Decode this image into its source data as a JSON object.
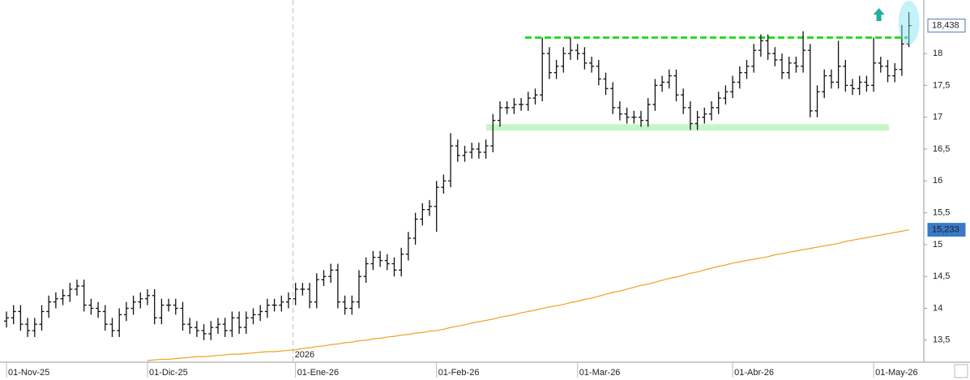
{
  "chart_data": {
    "type": "ohlc",
    "categories": [
      "01-Nov-25",
      null,
      null,
      null,
      null,
      null,
      null,
      null,
      null,
      null,
      null,
      null,
      null,
      null,
      null,
      null,
      null,
      null,
      null,
      null,
      "01-Dic-25",
      null,
      null,
      null,
      null,
      null,
      null,
      null,
      null,
      null,
      null,
      null,
      null,
      null,
      null,
      null,
      null,
      null,
      null,
      null,
      null,
      "01-Ene-26",
      null,
      null,
      null,
      null,
      null,
      null,
      null,
      null,
      null,
      null,
      null,
      null,
      null,
      null,
      null,
      null,
      null,
      null,
      null,
      "01-Feb-26",
      null,
      null,
      null,
      null,
      null,
      null,
      null,
      null,
      null,
      null,
      null,
      null,
      null,
      null,
      null,
      null,
      null,
      null,
      null,
      "01-Mar-26",
      null,
      null,
      null,
      null,
      null,
      null,
      null,
      null,
      null,
      null,
      null,
      null,
      null,
      null,
      null,
      null,
      null,
      null,
      null,
      null,
      null,
      "01-Abr-26",
      null,
      null,
      null,
      null,
      null,
      null,
      null,
      null,
      null,
      null,
      null,
      null,
      null,
      null,
      null,
      null,
      null,
      null,
      null,
      "01-May-26",
      null,
      null,
      null,
      null,
      null
    ],
    "open": [
      13.8,
      13.85,
      13.95,
      13.75,
      13.65,
      13.75,
      13.95,
      14.1,
      14.15,
      14.2,
      14.3,
      14.35,
      14.05,
      14.0,
      13.95,
      13.75,
      13.65,
      13.9,
      14.0,
      14.1,
      14.15,
      14.2,
      13.85,
      14.05,
      14.05,
      14.0,
      13.75,
      13.7,
      13.65,
      13.6,
      13.7,
      13.75,
      13.65,
      13.85,
      13.7,
      13.85,
      13.9,
      13.95,
      14.05,
      14.05,
      14.1,
      14.15,
      14.3,
      14.3,
      14.1,
      14.45,
      14.5,
      14.6,
      14.1,
      14.0,
      14.1,
      14.5,
      14.7,
      14.8,
      14.75,
      14.7,
      14.6,
      14.85,
      15.1,
      15.4,
      15.55,
      15.6,
      15.9,
      16.0,
      16.55,
      16.4,
      16.45,
      16.5,
      16.45,
      16.55,
      16.95,
      17.15,
      17.15,
      17.2,
      17.2,
      17.3,
      17.35,
      18.0,
      17.7,
      17.8,
      18.0,
      18.05,
      18.0,
      17.85,
      17.8,
      17.6,
      17.45,
      17.15,
      17.05,
      17.0,
      17.0,
      16.95,
      17.2,
      17.5,
      17.55,
      17.65,
      17.35,
      17.15,
      16.9,
      17.0,
      17.05,
      17.15,
      17.3,
      17.4,
      17.55,
      17.7,
      17.8,
      18.05,
      18.2,
      18.0,
      17.9,
      17.7,
      17.85,
      17.8,
      18.05,
      17.1,
      17.4,
      17.65,
      17.55,
      17.8,
      17.5,
      17.45,
      17.55,
      17.5,
      17.85,
      17.8,
      17.65,
      17.75,
      18.15
    ],
    "high": [
      13.95,
      14.05,
      14.05,
      13.85,
      13.85,
      14.05,
      14.2,
      14.25,
      14.3,
      14.4,
      14.45,
      14.45,
      14.15,
      14.1,
      14.05,
      13.85,
      14.0,
      14.1,
      14.2,
      14.25,
      14.3,
      14.3,
      14.15,
      14.15,
      14.15,
      14.1,
      13.85,
      13.8,
      13.75,
      13.8,
      13.85,
      13.85,
      13.95,
      13.95,
      13.95,
      14.0,
      14.05,
      14.15,
      14.15,
      14.2,
      14.25,
      14.4,
      14.4,
      14.4,
      14.55,
      14.6,
      14.7,
      14.7,
      14.2,
      14.2,
      14.6,
      14.8,
      14.9,
      14.9,
      14.85,
      14.8,
      14.95,
      15.2,
      15.5,
      15.65,
      15.7,
      16.0,
      16.1,
      16.75,
      16.65,
      16.55,
      16.6,
      16.6,
      16.65,
      17.05,
      17.25,
      17.25,
      17.3,
      17.3,
      17.4,
      17.45,
      18.25,
      18.1,
      17.9,
      18.1,
      18.25,
      18.15,
      18.1,
      17.95,
      17.9,
      17.7,
      17.55,
      17.25,
      17.15,
      17.1,
      17.1,
      17.3,
      17.6,
      17.65,
      17.75,
      17.75,
      17.45,
      17.25,
      17.1,
      17.15,
      17.25,
      17.4,
      17.5,
      17.65,
      17.8,
      17.9,
      18.15,
      18.3,
      18.3,
      18.1,
      18.0,
      17.95,
      17.95,
      18.35,
      18.15,
      17.5,
      17.75,
      17.75,
      18.2,
      17.9,
      17.6,
      17.65,
      17.65,
      18.25,
      17.95,
      17.9,
      17.85,
      18.45,
      18.65
    ],
    "low": [
      13.7,
      13.75,
      13.65,
      13.55,
      13.55,
      13.65,
      13.85,
      14.0,
      14.05,
      14.1,
      14.2,
      13.95,
      13.9,
      13.85,
      13.65,
      13.55,
      13.55,
      13.8,
      13.9,
      14.0,
      14.05,
      13.75,
      13.75,
      13.95,
      13.9,
      13.65,
      13.6,
      13.55,
      13.5,
      13.5,
      13.6,
      13.55,
      13.55,
      13.6,
      13.6,
      13.75,
      13.8,
      13.85,
      13.95,
      13.95,
      14.0,
      14.05,
      14.2,
      14.0,
      14.0,
      14.35,
      14.4,
      14.0,
      13.9,
      13.9,
      14.0,
      14.4,
      14.6,
      14.65,
      14.6,
      14.5,
      14.5,
      14.75,
      15.0,
      15.3,
      15.45,
      15.2,
      15.8,
      15.9,
      16.3,
      16.3,
      16.35,
      16.35,
      16.35,
      16.45,
      16.85,
      17.05,
      17.05,
      17.1,
      17.1,
      17.2,
      17.25,
      17.6,
      17.6,
      17.7,
      17.9,
      17.9,
      17.75,
      17.7,
      17.5,
      17.35,
      17.05,
      16.95,
      16.9,
      16.9,
      16.85,
      16.85,
      17.1,
      17.4,
      17.45,
      17.25,
      17.05,
      16.8,
      16.8,
      16.9,
      16.95,
      17.05,
      17.2,
      17.3,
      17.45,
      17.6,
      17.7,
      17.95,
      17.9,
      17.8,
      17.6,
      17.6,
      17.7,
      17.7,
      17.0,
      17.0,
      17.3,
      17.45,
      17.45,
      17.4,
      17.35,
      17.35,
      17.4,
      17.4,
      17.7,
      17.55,
      17.55,
      17.65,
      18.1
    ],
    "close": [
      13.85,
      13.95,
      13.75,
      13.65,
      13.75,
      13.95,
      14.1,
      14.15,
      14.2,
      14.3,
      14.35,
      14.05,
      14.0,
      13.95,
      13.75,
      13.65,
      13.9,
      14.0,
      14.1,
      14.15,
      14.2,
      13.85,
      14.05,
      14.05,
      14.0,
      13.75,
      13.7,
      13.65,
      13.6,
      13.7,
      13.75,
      13.65,
      13.85,
      13.7,
      13.85,
      13.9,
      13.95,
      14.05,
      14.05,
      14.1,
      14.15,
      14.3,
      14.3,
      14.1,
      14.45,
      14.5,
      14.6,
      14.1,
      14.0,
      14.1,
      14.5,
      14.7,
      14.8,
      14.75,
      14.7,
      14.6,
      14.85,
      15.1,
      15.4,
      15.55,
      15.6,
      15.9,
      16.0,
      16.55,
      16.4,
      16.45,
      16.5,
      16.45,
      16.55,
      16.95,
      17.15,
      17.15,
      17.2,
      17.2,
      17.3,
      17.35,
      18.0,
      17.7,
      17.8,
      18.0,
      18.05,
      18.0,
      17.85,
      17.8,
      17.6,
      17.45,
      17.15,
      17.05,
      17.0,
      17.0,
      16.95,
      17.2,
      17.5,
      17.55,
      17.65,
      17.35,
      17.15,
      16.9,
      17.0,
      17.05,
      17.15,
      17.3,
      17.4,
      17.55,
      17.7,
      17.8,
      18.05,
      18.2,
      18.0,
      17.9,
      17.7,
      17.85,
      17.8,
      18.05,
      17.1,
      17.4,
      17.65,
      17.55,
      17.8,
      17.5,
      17.45,
      17.55,
      17.5,
      17.85,
      17.8,
      17.65,
      17.75,
      18.15,
      18.438
    ],
    "color": "#111111",
    "moving_average": {
      "color": "#f0a020",
      "values": [
        null,
        null,
        null,
        null,
        null,
        null,
        null,
        null,
        null,
        null,
        null,
        null,
        null,
        null,
        null,
        null,
        null,
        null,
        null,
        null,
        13.18,
        13.19,
        13.2,
        13.2,
        13.21,
        13.22,
        13.23,
        13.24,
        13.24,
        13.25,
        13.26,
        13.27,
        13.28,
        13.28,
        13.29,
        13.3,
        13.31,
        13.32,
        13.32,
        13.33,
        13.34,
        13.35,
        13.37,
        13.38,
        13.4,
        13.41,
        13.43,
        13.44,
        13.46,
        13.47,
        13.49,
        13.5,
        13.52,
        13.53,
        13.55,
        13.56,
        13.58,
        13.59,
        13.61,
        13.62,
        13.64,
        13.65,
        13.67,
        13.7,
        13.72,
        13.74,
        13.77,
        13.79,
        13.81,
        13.83,
        13.86,
        13.88,
        13.9,
        13.93,
        13.95,
        13.97,
        14.0,
        14.02,
        14.04,
        14.06,
        14.09,
        14.11,
        14.14,
        14.16,
        14.19,
        14.22,
        14.25,
        14.27,
        14.3,
        14.33,
        14.36,
        14.38,
        14.41,
        14.44,
        14.47,
        14.49,
        14.52,
        14.55,
        14.57,
        14.6,
        14.63,
        14.66,
        14.68,
        14.71,
        14.73,
        14.75,
        14.77,
        14.79,
        14.81,
        14.84,
        14.86,
        14.88,
        14.9,
        14.92,
        14.94,
        14.96,
        14.98,
        15.0,
        15.02,
        15.05,
        15.07,
        15.09,
        15.11,
        15.13,
        15.15,
        15.17,
        15.19,
        15.21,
        15.233
      ]
    },
    "last_price": {
      "value": 18.438,
      "label": "18,438"
    },
    "ma_last": {
      "value": 15.233,
      "label": "15,233"
    },
    "resistance": {
      "value": 18.25,
      "color": "#22dd22"
    },
    "support": {
      "value": 16.84,
      "color": "#c8f5c8"
    },
    "year_label": "2026",
    "ylim": [
      13.18,
      18.84
    ],
    "yticks": [
      {
        "value": 13.5,
        "label": "13,5"
      },
      14,
      {
        "value": 14.5,
        "label": "14,5"
      },
      15,
      {
        "value": 15.5,
        "label": "15,5"
      },
      16,
      {
        "value": 16.5,
        "label": "16,5"
      },
      17,
      {
        "value": 17.5,
        "label": "17,5"
      },
      18
    ]
  }
}
